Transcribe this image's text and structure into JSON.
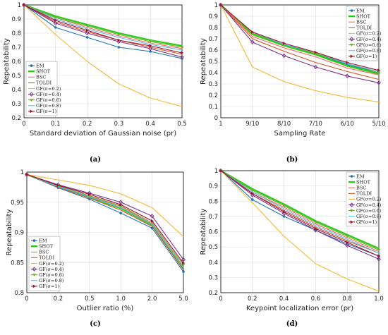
{
  "figure": {
    "panel_labels": [
      "(a)",
      "(b)",
      "(c)",
      "(d)"
    ]
  },
  "series_colors": {
    "EM": "#1f77b4",
    "SHOT": "#2ecc1a",
    "BSC": "#ff6666",
    "TOLDI": "#d9531e",
    "GF(σ=0.2)": "#f5b935",
    "GF(σ=0.4)": "#7e2f8e",
    "GF(σ=0.6)": "#77ac30",
    "GF(σ=0.8)": "#4dbeee",
    "GF(σ=1)": "#a2142f"
  },
  "chart_data": [
    {
      "type": "line",
      "panel": "(a)",
      "xlabel": "Standard deviation of Gaussian noise (pr)",
      "ylabel": "Repeatability",
      "x": [
        0,
        0.1,
        0.2,
        0.3,
        0.4,
        0.5
      ],
      "xticks": [
        "0",
        "0.1",
        "0.2",
        "0.3",
        "0.4",
        "0.5"
      ],
      "ylim": [
        0.2,
        1
      ],
      "yticks": [
        "0.2",
        "0.3",
        "0.4",
        "0.5",
        "0.6",
        "0.7",
        "0.8",
        "0.9",
        "1"
      ],
      "grid": true,
      "legend": "bottom-left",
      "series": [
        {
          "name": "EM",
          "values": [
            1.0,
            0.84,
            0.77,
            0.7,
            0.67,
            0.62
          ]
        },
        {
          "name": "SHOT",
          "values": [
            1.0,
            0.92,
            0.86,
            0.8,
            0.75,
            0.71
          ]
        },
        {
          "name": "BSC",
          "values": [
            1.0,
            0.91,
            0.84,
            0.78,
            0.73,
            0.69
          ]
        },
        {
          "name": "TOLDI",
          "values": [
            1.0,
            0.88,
            0.81,
            0.75,
            0.7,
            0.65
          ]
        },
        {
          "name": "GF(σ=0.2)",
          "values": [
            1.0,
            0.79,
            0.6,
            0.44,
            0.34,
            0.28
          ]
        },
        {
          "name": "GF(σ=0.4)",
          "values": [
            1.0,
            0.87,
            0.8,
            0.74,
            0.69,
            0.63
          ]
        },
        {
          "name": "GF(σ=0.6)",
          "values": [
            1.0,
            0.91,
            0.85,
            0.79,
            0.74,
            0.7
          ]
        },
        {
          "name": "GF(σ=0.8)",
          "values": [
            1.0,
            0.9,
            0.83,
            0.77,
            0.72,
            0.68
          ]
        },
        {
          "name": "GF(σ=1)",
          "values": [
            1.0,
            0.89,
            0.82,
            0.75,
            0.71,
            0.66
          ]
        }
      ]
    },
    {
      "type": "line",
      "panel": "(b)",
      "xlabel": "Sampling Rate",
      "ylabel": "Repeatability",
      "categories": [
        "1",
        "9/10",
        "8/10",
        "7/10",
        "6/10",
        "5/10"
      ],
      "ylim": [
        0,
        1
      ],
      "yticks": [
        "0",
        "0.1",
        "0.2",
        "0.3",
        "0.4",
        "0.5",
        "0.6",
        "0.7",
        "0.8",
        "0.9",
        "1"
      ],
      "grid": true,
      "legend": "top-right",
      "series": [
        {
          "name": "EM",
          "values": [
            1.0,
            0.75,
            0.65,
            0.57,
            0.47,
            0.4
          ]
        },
        {
          "name": "SHOT",
          "values": [
            1.0,
            0.74,
            0.64,
            0.56,
            0.46,
            0.39
          ]
        },
        {
          "name": "BSC",
          "values": [
            1.0,
            0.72,
            0.62,
            0.54,
            0.44,
            0.38
          ]
        },
        {
          "name": "TOLDI",
          "values": [
            1.0,
            0.7,
            0.59,
            0.49,
            0.41,
            0.34
          ]
        },
        {
          "name": "GF(σ=0.2)",
          "values": [
            1.0,
            0.45,
            0.32,
            0.24,
            0.18,
            0.14
          ]
        },
        {
          "name": "GF(σ=0.4)",
          "values": [
            1.0,
            0.67,
            0.55,
            0.45,
            0.37,
            0.31
          ]
        },
        {
          "name": "GF(σ=0.6)",
          "values": [
            1.0,
            0.75,
            0.65,
            0.57,
            0.48,
            0.4
          ]
        },
        {
          "name": "GF(σ=0.8)",
          "values": [
            1.0,
            0.76,
            0.65,
            0.58,
            0.48,
            0.41
          ]
        },
        {
          "name": "GF(σ=1)",
          "values": [
            1.0,
            0.76,
            0.66,
            0.58,
            0.49,
            0.42
          ]
        }
      ]
    },
    {
      "type": "line",
      "panel": "(c)",
      "xlabel": "Outlier ratio (%)",
      "ylabel": "Repeatability",
      "categories": [
        "0",
        "0.2",
        "0.5",
        "1.0",
        "2.0",
        "5.0"
      ],
      "ylim": [
        0.8,
        1
      ],
      "yticks": [
        "0.8",
        "0.85",
        "0.9",
        "0.95",
        "1"
      ],
      "grid": true,
      "legend": "bottom-left",
      "series": [
        {
          "name": "EM",
          "values": [
            0.996,
            0.974,
            0.955,
            0.932,
            0.907,
            0.835
          ]
        },
        {
          "name": "SHOT",
          "values": [
            0.996,
            0.976,
            0.958,
            0.94,
            0.912,
            0.84
          ]
        },
        {
          "name": "BSC",
          "values": [
            0.996,
            0.977,
            0.96,
            0.943,
            0.914,
            0.843
          ]
        },
        {
          "name": "TOLDI",
          "values": [
            0.996,
            0.975,
            0.957,
            0.937,
            0.91,
            0.838
          ]
        },
        {
          "name": "GF(σ=0.2)",
          "values": [
            0.996,
            0.987,
            0.978,
            0.964,
            0.941,
            0.893
          ]
        },
        {
          "name": "GF(σ=0.4)",
          "values": [
            0.996,
            0.979,
            0.965,
            0.95,
            0.927,
            0.855
          ]
        },
        {
          "name": "GF(σ=0.6)",
          "values": [
            0.996,
            0.977,
            0.961,
            0.944,
            0.916,
            0.846
          ]
        },
        {
          "name": "GF(σ=0.8)",
          "values": [
            0.996,
            0.976,
            0.959,
            0.941,
            0.913,
            0.842
          ]
        },
        {
          "name": "GF(σ=1)",
          "values": [
            0.996,
            0.978,
            0.963,
            0.946,
            0.919,
            0.849
          ]
        }
      ]
    },
    {
      "type": "line",
      "panel": "(d)",
      "xlabel": "Keypoint localization error (pr)",
      "ylabel": "Repeatability",
      "x": [
        0,
        0.2,
        0.4,
        0.6,
        0.8,
        1.0
      ],
      "xticks": [
        "0",
        "0.2",
        "0.4",
        "0.6",
        "0.8",
        "1.0"
      ],
      "ylim": [
        0.2,
        1
      ],
      "yticks": [
        "0.2",
        "0.3",
        "0.4",
        "0.5",
        "0.6",
        "0.7",
        "0.8",
        "0.9",
        "1"
      ],
      "grid": true,
      "legend": "top-right",
      "series": [
        {
          "name": "EM",
          "values": [
            1.0,
            0.81,
            0.7,
            0.61,
            0.52,
            0.44
          ]
        },
        {
          "name": "SHOT",
          "values": [
            1.0,
            0.88,
            0.78,
            0.67,
            0.58,
            0.49
          ]
        },
        {
          "name": "BSC",
          "values": [
            1.0,
            0.86,
            0.76,
            0.65,
            0.56,
            0.47
          ]
        },
        {
          "name": "TOLDI",
          "values": [
            1.0,
            0.85,
            0.74,
            0.63,
            0.54,
            0.46
          ]
        },
        {
          "name": "GF(σ=0.2)",
          "values": [
            1.0,
            0.79,
            0.57,
            0.39,
            0.29,
            0.21
          ]
        },
        {
          "name": "GF(σ=0.4)",
          "values": [
            1.0,
            0.84,
            0.72,
            0.61,
            0.51,
            0.42
          ]
        },
        {
          "name": "GF(σ=0.6)",
          "values": [
            1.0,
            0.87,
            0.77,
            0.66,
            0.57,
            0.48
          ]
        },
        {
          "name": "GF(σ=0.8)",
          "values": [
            1.0,
            0.86,
            0.75,
            0.64,
            0.55,
            0.46
          ]
        },
        {
          "name": "GF(σ=1)",
          "values": [
            1.0,
            0.85,
            0.73,
            0.62,
            0.53,
            0.44
          ]
        }
      ]
    }
  ]
}
